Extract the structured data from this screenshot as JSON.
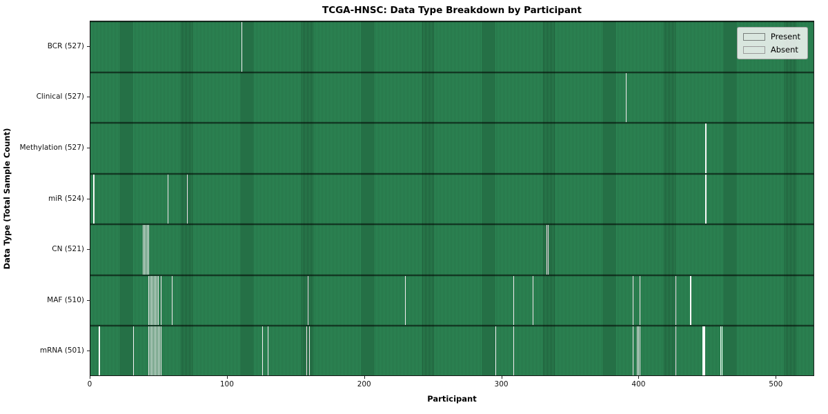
{
  "title": "TCGA-HNSC: Data Type Breakdown by Participant",
  "axes": {
    "x_label": "Participant",
    "y_label": "Data Type (Total Sample Count)"
  },
  "legend": {
    "items": [
      {
        "label": "Present",
        "color": "#2e8b57"
      },
      {
        "label": "Absent",
        "color": "#ffffff"
      }
    ]
  },
  "colors": {
    "present_fill": "#2e8b57",
    "present_edge": "#1c5434",
    "absent": "#fbfbfb",
    "row_divider": "#102e1f",
    "spine": "#151515"
  },
  "chart_data": {
    "type": "heatmap",
    "title": "TCGA-HNSC: Data Type Breakdown by Participant",
    "xlabel": "Participant",
    "ylabel": "Data Type (Total Sample Count)",
    "legend_position": "upper right",
    "legend_entries": [
      "Present",
      "Absent"
    ],
    "participants_total": 528,
    "xlim": [
      0,
      528
    ],
    "x_ticks": [
      0,
      100,
      200,
      300,
      400,
      500
    ],
    "rows": [
      {
        "label": "BCR (527)",
        "data_type": "BCR",
        "present_count": 527,
        "absent_participants": [
          110
        ]
      },
      {
        "label": "Clinical (527)",
        "data_type": "Clinical",
        "present_count": 527,
        "absent_participants": [
          390
        ]
      },
      {
        "label": "Methylation (527)",
        "data_type": "Methylation",
        "present_count": 527,
        "absent_participants": [
          448
        ]
      },
      {
        "label": "miR (524)",
        "data_type": "miR",
        "present_count": 524,
        "absent_participants": [
          2,
          56,
          70,
          448
        ]
      },
      {
        "label": "CN (521)",
        "data_type": "CN",
        "present_count": 521,
        "absent_participants": [
          38,
          39,
          40,
          41,
          42,
          332,
          333
        ]
      },
      {
        "label": "MAF (510)",
        "data_type": "MAF",
        "present_count": 510,
        "absent_participants": [
          42,
          43,
          44,
          45,
          46,
          47,
          48,
          49,
          51,
          59,
          158,
          229,
          308,
          322,
          395,
          400,
          426,
          437
        ]
      },
      {
        "label": "mRNA (501)",
        "data_type": "mRNA",
        "present_count": 501,
        "absent_participants": [
          6,
          31,
          42,
          43,
          44,
          45,
          46,
          47,
          48,
          49,
          50,
          51,
          125,
          129,
          157,
          159,
          295,
          308,
          395,
          398,
          399,
          400,
          426,
          446,
          447,
          459,
          460
        ]
      }
    ]
  }
}
